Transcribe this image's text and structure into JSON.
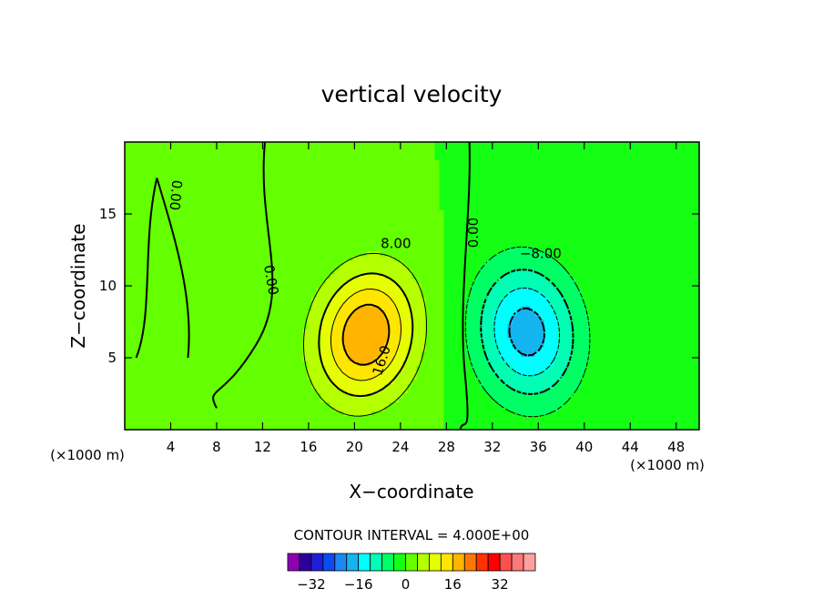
{
  "chart_data": {
    "type": "contour",
    "title": "vertical velocity",
    "xlabel": "X−coordinate",
    "ylabel": "Z−coordinate",
    "x_unit_left": "(×1000 m)",
    "x_unit_right": "(×1000 m)",
    "xlim": [
      0,
      50
    ],
    "ylim": [
      0,
      20
    ],
    "x_ticks": [
      4,
      8,
      12,
      16,
      20,
      24,
      28,
      32,
      36,
      40,
      44,
      48
    ],
    "y_ticks": [
      5,
      10,
      15
    ],
    "contour_interval_text": "CONTOUR INTERVAL =  4.000E+00",
    "contour_interval": 4,
    "contour_labels": [
      {
        "text": "0.00",
        "x": 4.4,
        "y": 16.3,
        "rotate": 95
      },
      {
        "text": "0.00",
        "x": 12.7,
        "y": 10.4,
        "rotate": 80
      },
      {
        "text": "0.00",
        "x": 30.4,
        "y": 13.7,
        "rotate": -90
      },
      {
        "text": "8.00",
        "x": 23.6,
        "y": 12.9,
        "rotate": 0
      },
      {
        "text": "16.0",
        "x": 22.4,
        "y": 4.8,
        "rotate": -72
      },
      {
        "text": "−8.00",
        "x": 36.2,
        "y": 12.2,
        "rotate": 0
      }
    ],
    "fields": {
      "background_value": 0,
      "updraft": {
        "cx": 21.0,
        "cz": 6.6,
        "sx": 6.0,
        "sz": 6.3,
        "amp": 20,
        "tilt": -0.12
      },
      "downdraft": {
        "cx": 35.0,
        "cz": 6.8,
        "sx": 6.3,
        "sz": 6.8,
        "amp": -18,
        "tilt": 0.08
      }
    },
    "colorbar": {
      "levels": [
        -36,
        -32,
        -28,
        -24,
        -20,
        -16,
        -12,
        -8,
        -4,
        0,
        4,
        8,
        12,
        16,
        20,
        24,
        28,
        32,
        36
      ],
      "tick_labels": [
        "−32",
        "−16",
        "0",
        "16",
        "32"
      ],
      "tick_values": [
        -32,
        -16,
        0,
        16,
        32
      ],
      "colors": [
        "#8e00b4",
        "#2d009e",
        "#1e1ed8",
        "#0a4cf0",
        "#1e88f0",
        "#14b4f0",
        "#00ffff",
        "#00ffb4",
        "#00ff64",
        "#14ff14",
        "#64ff00",
        "#b4ff00",
        "#e6ff00",
        "#ffe600",
        "#ffb400",
        "#ff7800",
        "#ff3200",
        "#ff0000",
        "#ff5050",
        "#ff7878",
        "#ffa0a0"
      ]
    }
  }
}
